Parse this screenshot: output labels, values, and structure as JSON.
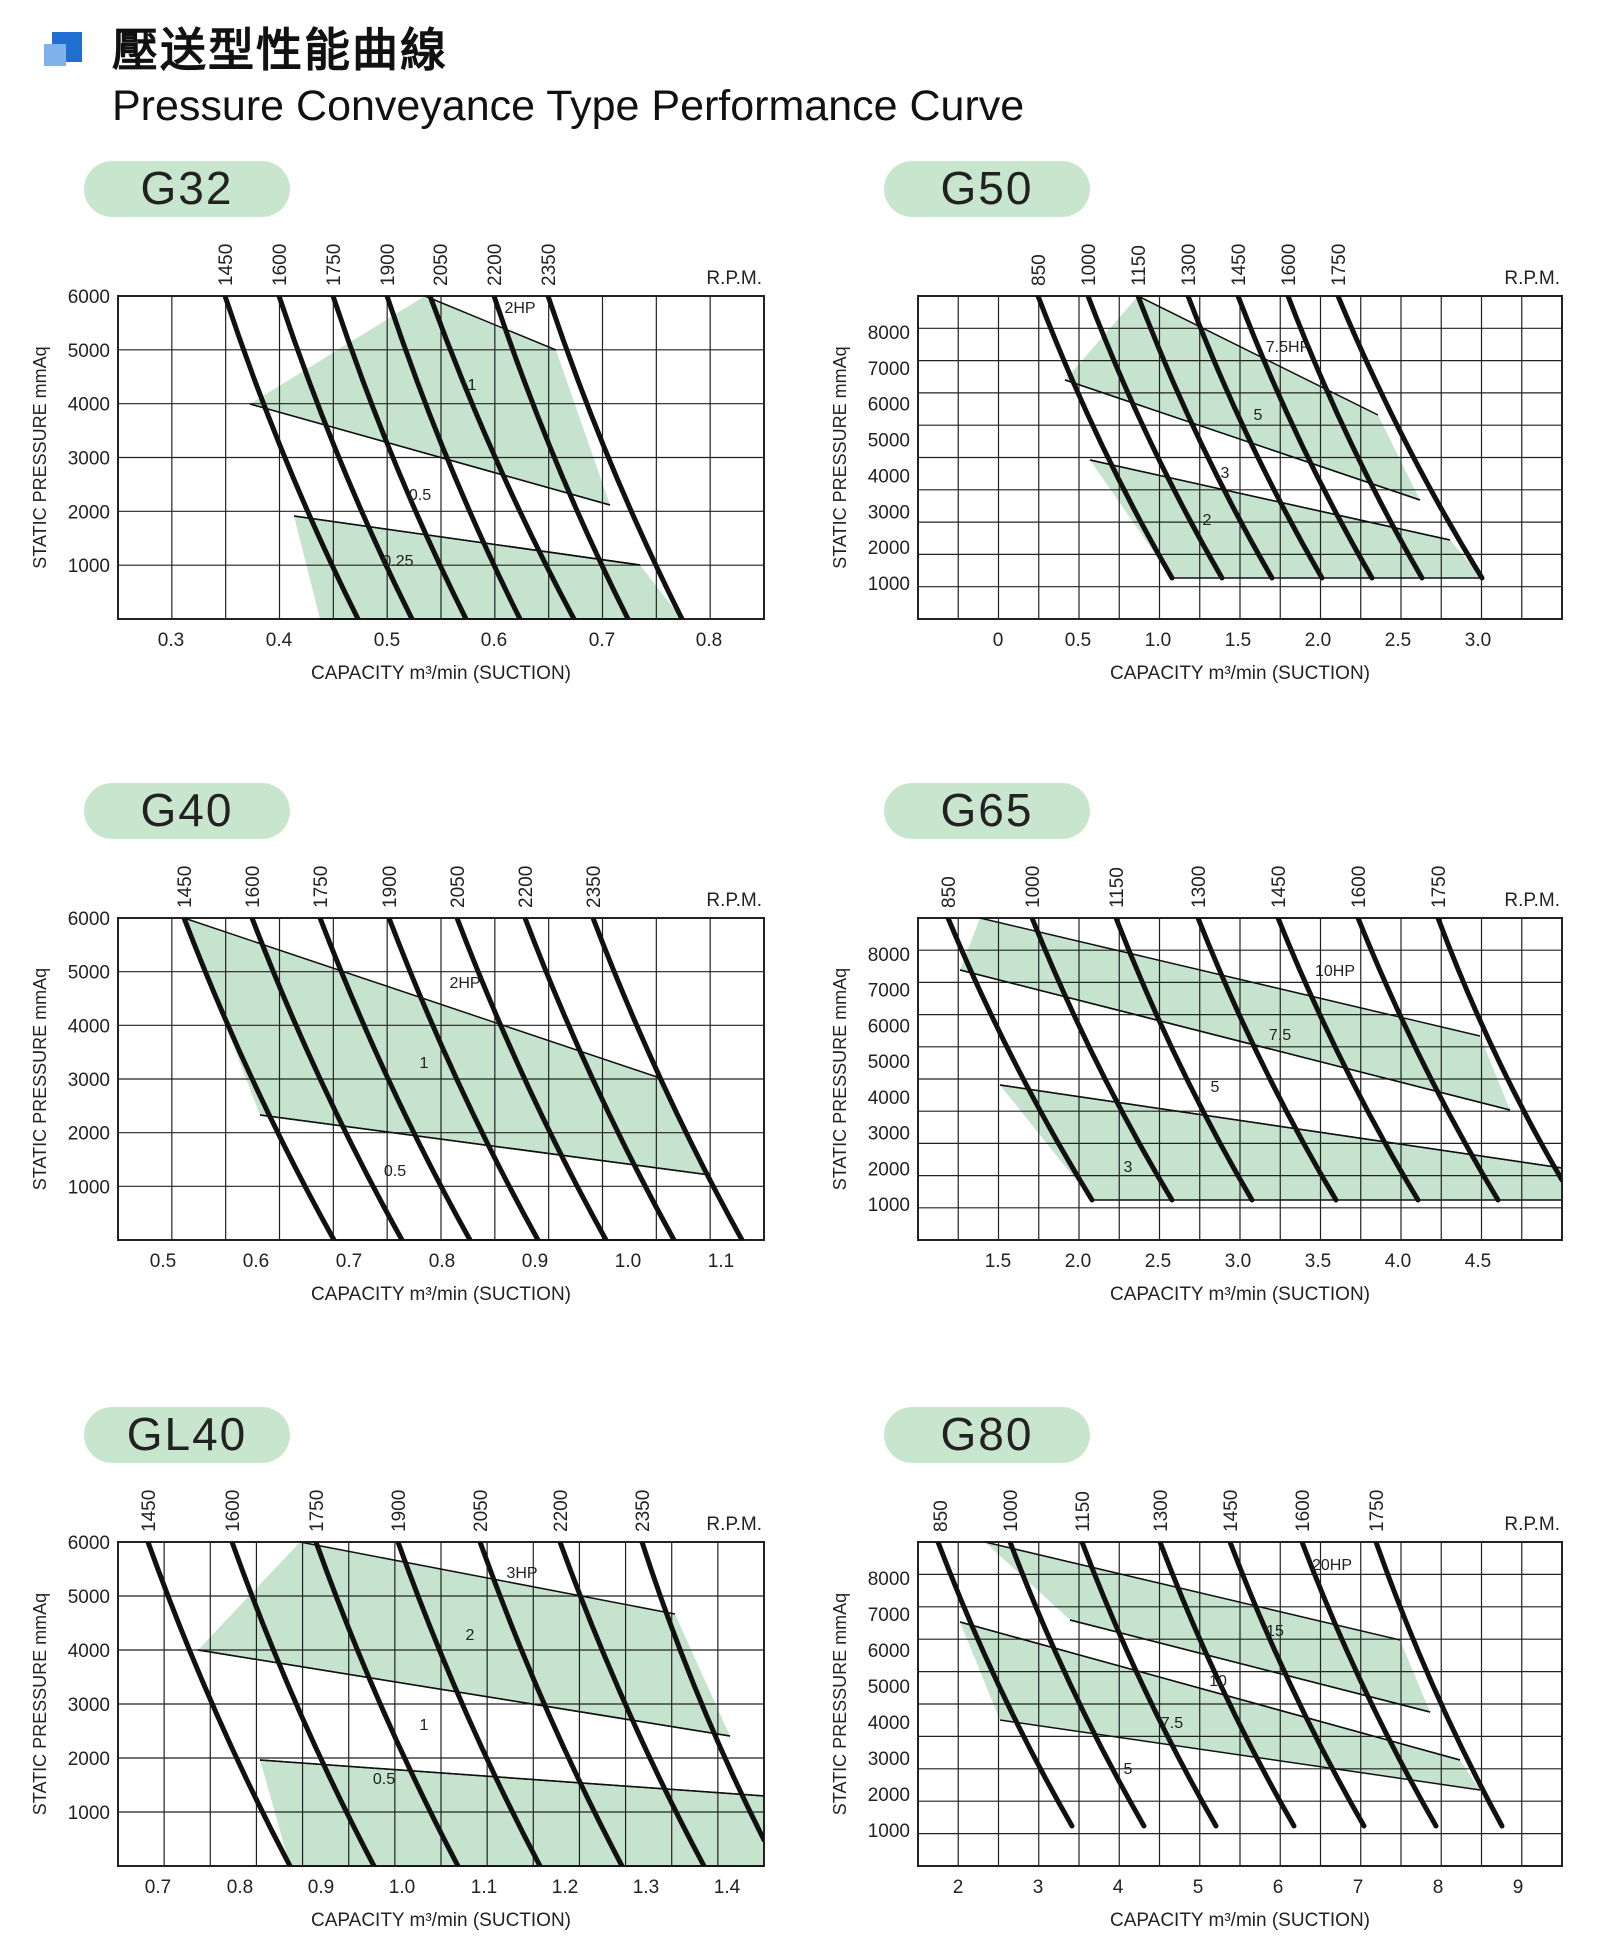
{
  "header": {
    "title_zh": "壓送型性能曲線",
    "title_en": "Pressure Conveyance Type Performance Curve"
  },
  "colors": {
    "accent_fill": "#c5e3cd",
    "pill": "#c8e6ce",
    "curve": "#111111",
    "grid": "#222222",
    "icon_dark": "#1f6fd0",
    "icon_light": "#7fb2ea"
  },
  "chart_data": [
    {
      "model": "G32",
      "type": "line",
      "ylabel": "STATIC PRESSURE mmAq",
      "xlabel": "CAPACITY m³/min (SUCTION)",
      "rpm_label": "R.P.M.",
      "x_ticks": [
        "0.3",
        "0.4",
        "0.5",
        "0.6",
        "0.7",
        "0.8"
      ],
      "y_ticks": [
        "1000",
        "2000",
        "3000",
        "4000",
        "5000",
        "6000"
      ],
      "rpm": [
        "1450",
        "1600",
        "1750",
        "1900",
        "2050",
        "2200",
        "2350"
      ],
      "hp": [
        "2HP",
        "1",
        "0.5",
        "0.25"
      ]
    },
    {
      "model": "G50",
      "type": "line",
      "ylabel": "STATIC PRESSURE mmAq",
      "xlabel": "CAPACITY m³/min (SUCTION)",
      "rpm_label": "R.P.M.",
      "x_ticks": [
        "0",
        "0.5",
        "1.0",
        "1.5",
        "2.0",
        "2.5",
        "3.0"
      ],
      "y_ticks": [
        "1000",
        "2000",
        "3000",
        "4000",
        "5000",
        "6000",
        "7000",
        "8000"
      ],
      "rpm": [
        "850",
        "1000",
        "1150",
        "1300",
        "1450",
        "1600",
        "1750"
      ],
      "hp": [
        "7.5HP",
        "5",
        "3",
        "2"
      ]
    },
    {
      "model": "G40",
      "type": "line",
      "ylabel": "STATIC PRESSURE mmAq",
      "xlabel": "CAPACITY m³/min (SUCTION)",
      "rpm_label": "R.P.M.",
      "x_ticks": [
        "0.5",
        "0.6",
        "0.7",
        "0.8",
        "0.9",
        "1.0",
        "1.1"
      ],
      "y_ticks": [
        "1000",
        "2000",
        "3000",
        "4000",
        "5000",
        "6000"
      ],
      "rpm": [
        "1450",
        "1600",
        "1750",
        "1900",
        "2050",
        "2200",
        "2350"
      ],
      "hp": [
        "2HP",
        "1",
        "0.5"
      ]
    },
    {
      "model": "G65",
      "type": "line",
      "ylabel": "STATIC PRESSURE mmAq",
      "xlabel": "CAPACITY m³/min (SUCTION)",
      "rpm_label": "R.P.M.",
      "x_ticks": [
        "1.5",
        "2.0",
        "2.5",
        "3.0",
        "3.5",
        "4.0",
        "4.5"
      ],
      "y_ticks": [
        "1000",
        "2000",
        "3000",
        "4000",
        "5000",
        "6000",
        "7000",
        "8000"
      ],
      "rpm": [
        "850",
        "1000",
        "1150",
        "1300",
        "1450",
        "1600",
        "1750"
      ],
      "hp": [
        "10HP",
        "7.5",
        "5",
        "3"
      ]
    },
    {
      "model": "GL40",
      "type": "line",
      "ylabel": "STATIC PRESSURE mmAq",
      "xlabel": "CAPACITY m³/min (SUCTION)",
      "rpm_label": "R.P.M.",
      "x_ticks": [
        "0.7",
        "0.8",
        "0.9",
        "1.0",
        "1.1",
        "1.2",
        "1.3",
        "1.4"
      ],
      "y_ticks": [
        "1000",
        "2000",
        "3000",
        "4000",
        "5000",
        "6000"
      ],
      "rpm": [
        "1450",
        "1600",
        "1750",
        "1900",
        "2050",
        "2200",
        "2350"
      ],
      "hp": [
        "3HP",
        "2",
        "1",
        "0.5"
      ]
    },
    {
      "model": "G80",
      "type": "line",
      "ylabel": "STATIC PRESSURE mmAq",
      "xlabel": "CAPACITY m³/min (SUCTION)",
      "rpm_label": "R.P.M.",
      "x_ticks": [
        "2",
        "3",
        "4",
        "5",
        "6",
        "7",
        "8",
        "9"
      ],
      "y_ticks": [
        "1000",
        "2000",
        "3000",
        "4000",
        "5000",
        "6000",
        "7000",
        "8000"
      ],
      "rpm": [
        "850",
        "1000",
        "1150",
        "1300",
        "1450",
        "1600",
        "1750"
      ],
      "hp": [
        "20HP",
        "15",
        "10",
        "7.5",
        "5"
      ]
    }
  ]
}
